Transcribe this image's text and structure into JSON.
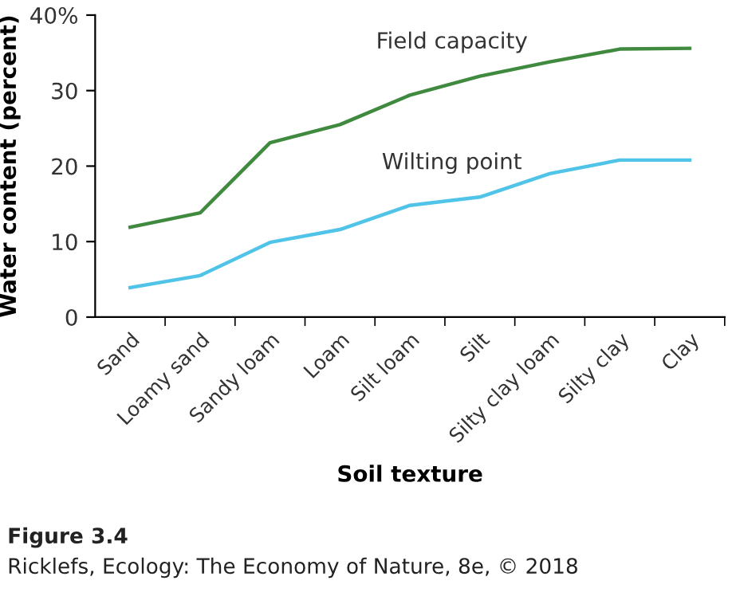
{
  "chart_data": {
    "type": "line",
    "xlabel": "Soil texture",
    "ylabel": "Water content (percent)",
    "categories": [
      "Sand",
      "Loamy sand",
      "Sandy loam",
      "Loam",
      "Silt loam",
      "Silt",
      "Silty clay loam",
      "Silty clay",
      "Clay"
    ],
    "series": [
      {
        "name": "Field capacity",
        "color": "#3f8a3f",
        "values": [
          11.9,
          13.8,
          23.1,
          25.5,
          29.4,
          31.9,
          33.8,
          35.5,
          35.6
        ]
      },
      {
        "name": "Wilting point",
        "color": "#4fc3e8",
        "values": [
          3.9,
          5.5,
          9.9,
          11.6,
          14.8,
          15.9,
          19.0,
          20.8,
          20.8
        ]
      }
    ],
    "ylim": [
      0,
      40
    ],
    "yticks": [
      0,
      10,
      20,
      30,
      {
        "value": 40,
        "label": "40%"
      }
    ],
    "grid": false,
    "legend": false,
    "marker": "none",
    "line_style": "solid",
    "annotations": [
      "Figure 3.4",
      "Ricklefs, Ecology: The Economy of Nature, 8e, © 2018"
    ]
  }
}
